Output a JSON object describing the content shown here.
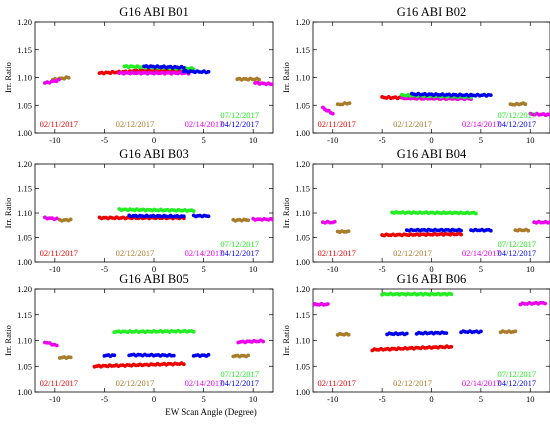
{
  "figure": {
    "xlabel": "EW Scan Angle (Degree)",
    "ylabel": "Irr. Ratio"
  },
  "colors": {
    "red": "#ee0000",
    "brown": "#a87c2a",
    "magenta": "#ee00ee",
    "green": "#22ee22",
    "blue": "#0000ee"
  },
  "chart_data": [
    {
      "type": "scatter",
      "title": "G16 ABI B01",
      "xlim": [
        -12,
        12
      ],
      "ylim": [
        1.0,
        1.2
      ],
      "xticks": [
        -10,
        -5,
        0,
        5,
        10
      ],
      "yticks": [
        "1.00",
        "1.05",
        "1.10",
        "1.15",
        "1.20"
      ],
      "series": [
        {
          "name": "02/11/2017",
          "color": "red",
          "segments": [
            {
              "x0": -5.5,
              "x1": -2,
              "y0": 1.108,
              "y1": 1.111
            },
            {
              "x0": -2,
              "x1": 3,
              "y0": 1.112,
              "y1": 1.113
            }
          ]
        },
        {
          "name": "02/12/2017",
          "color": "brown",
          "segments": [
            {
              "x0": -10.2,
              "x1": -8.6,
              "y0": 1.096,
              "y1": 1.1
            },
            {
              "x0": 8.4,
              "x1": 10.6,
              "y0": 1.097,
              "y1": 1.097
            }
          ]
        },
        {
          "name": "02/14/2017",
          "color": "magenta",
          "segments": [
            {
              "x0": -11,
              "x1": -9.6,
              "y0": 1.09,
              "y1": 1.095
            },
            {
              "x0": -3.5,
              "x1": 3.5,
              "y0": 1.108,
              "y1": 1.108
            },
            {
              "x0": 10.2,
              "x1": 12,
              "y0": 1.09,
              "y1": 1.088
            }
          ]
        },
        {
          "name": "07/12/2017",
          "color": "green",
          "segments": [
            {
              "x0": -3,
              "x1": 4,
              "y0": 1.12,
              "y1": 1.116
            }
          ]
        },
        {
          "name": "04/12/2017",
          "color": "blue",
          "segments": [
            {
              "x0": -1,
              "x1": 3,
              "y0": 1.12,
              "y1": 1.118
            },
            {
              "x0": 3,
              "x1": 5.5,
              "y0": 1.111,
              "y1": 1.11
            }
          ]
        }
      ]
    },
    {
      "type": "scatter",
      "title": "G16 ABI B02",
      "xlim": [
        -12,
        12
      ],
      "ylim": [
        1.0,
        1.2
      ],
      "xticks": [
        -10,
        -5,
        0,
        5,
        10
      ],
      "yticks": [
        "1.00",
        "1.05",
        "1.10",
        "1.15",
        "1.20"
      ],
      "series": [
        {
          "name": "02/11/2017",
          "color": "red",
          "segments": [
            {
              "x0": -5,
              "x1": 3,
              "y0": 1.064,
              "y1": 1.062
            }
          ]
        },
        {
          "name": "02/12/2017",
          "color": "brown",
          "segments": [
            {
              "x0": -9.5,
              "x1": -8.3,
              "y0": 1.051,
              "y1": 1.054
            },
            {
              "x0": 8,
              "x1": 9.5,
              "y0": 1.051,
              "y1": 1.053
            }
          ]
        },
        {
          "name": "02/14/2017",
          "color": "magenta",
          "segments": [
            {
              "x0": -11,
              "x1": -10,
              "y0": 1.045,
              "y1": 1.035
            },
            {
              "x0": -3,
              "x1": 4,
              "y0": 1.063,
              "y1": 1.062
            },
            {
              "x0": 10,
              "x1": 12,
              "y0": 1.034,
              "y1": 1.033
            }
          ]
        },
        {
          "name": "07/12/2017",
          "color": "green",
          "segments": [
            {
              "x0": -3,
              "x1": 4,
              "y0": 1.068,
              "y1": 1.065
            }
          ]
        },
        {
          "name": "04/12/2017",
          "color": "blue",
          "segments": [
            {
              "x0": -2,
              "x1": 4,
              "y0": 1.07,
              "y1": 1.068
            },
            {
              "x0": 4,
              "x1": 6,
              "y0": 1.068,
              "y1": 1.068
            }
          ]
        }
      ]
    },
    {
      "type": "scatter",
      "title": "G16 ABI B03",
      "xlim": [
        -12,
        12
      ],
      "ylim": [
        1.0,
        1.2
      ],
      "xticks": [
        -10,
        -5,
        0,
        5,
        10
      ],
      "yticks": [
        "1.00",
        "1.05",
        "1.10",
        "1.15",
        "1.20"
      ],
      "series": [
        {
          "name": "02/11/2017",
          "color": "red",
          "segments": [
            {
              "x0": -5.5,
              "x1": 3,
              "y0": 1.09,
              "y1": 1.09
            }
          ]
        },
        {
          "name": "02/12/2017",
          "color": "brown",
          "segments": [
            {
              "x0": -9.5,
              "x1": -8.4,
              "y0": 1.085,
              "y1": 1.086
            },
            {
              "x0": 8,
              "x1": 9.5,
              "y0": 1.085,
              "y1": 1.086
            }
          ]
        },
        {
          "name": "02/14/2017",
          "color": "magenta",
          "segments": [
            {
              "x0": -11,
              "x1": -9.8,
              "y0": 1.09,
              "y1": 1.088
            },
            {
              "x0": 10,
              "x1": 12,
              "y0": 1.087,
              "y1": 1.087
            }
          ]
        },
        {
          "name": "07/12/2017",
          "color": "green",
          "segments": [
            {
              "x0": -3.5,
              "x1": 4,
              "y0": 1.107,
              "y1": 1.105
            }
          ]
        },
        {
          "name": "04/12/2017",
          "color": "blue",
          "segments": [
            {
              "x0": -2.5,
              "x1": 3,
              "y0": 1.094,
              "y1": 1.093
            },
            {
              "x0": 4,
              "x1": 5.5,
              "y0": 1.094,
              "y1": 1.094
            }
          ]
        }
      ]
    },
    {
      "type": "scatter",
      "title": "G16 ABI B04",
      "xlim": [
        -12,
        12
      ],
      "ylim": [
        1.0,
        1.2
      ],
      "xticks": [
        -10,
        -5,
        0,
        5,
        10
      ],
      "yticks": [
        "1.00",
        "1.05",
        "1.10",
        "1.15",
        "1.20"
      ],
      "series": [
        {
          "name": "02/11/2017",
          "color": "red",
          "segments": [
            {
              "x0": -5,
              "x1": 3,
              "y0": 1.055,
              "y1": 1.057
            }
          ]
        },
        {
          "name": "02/12/2017",
          "color": "brown",
          "segments": [
            {
              "x0": -9.5,
              "x1": -8.4,
              "y0": 1.062,
              "y1": 1.062
            },
            {
              "x0": 8.5,
              "x1": 9.8,
              "y0": 1.065,
              "y1": 1.065
            }
          ]
        },
        {
          "name": "02/14/2017",
          "color": "magenta",
          "segments": [
            {
              "x0": -11,
              "x1": -9.8,
              "y0": 1.081,
              "y1": 1.081
            },
            {
              "x0": 10.4,
              "x1": 12,
              "y0": 1.081,
              "y1": 1.081
            }
          ]
        },
        {
          "name": "07/12/2017",
          "color": "green",
          "segments": [
            {
              "x0": -4,
              "x1": 4.5,
              "y0": 1.101,
              "y1": 1.1
            }
          ]
        },
        {
          "name": "04/12/2017",
          "color": "blue",
          "segments": [
            {
              "x0": -2.5,
              "x1": 3,
              "y0": 1.065,
              "y1": 1.065
            },
            {
              "x0": 4,
              "x1": 6,
              "y0": 1.065,
              "y1": 1.065
            }
          ]
        }
      ]
    },
    {
      "type": "scatter",
      "title": "G16 ABI B05",
      "xlim": [
        -12,
        12
      ],
      "ylim": [
        1.0,
        1.2
      ],
      "xticks": [
        -10,
        -5,
        0,
        5,
        10
      ],
      "yticks": [
        "1.00",
        "1.05",
        "1.10",
        "1.15",
        "1.20"
      ],
      "series": [
        {
          "name": "02/11/2017",
          "color": "red",
          "segments": [
            {
              "x0": -6,
              "x1": 3,
              "y0": 1.05,
              "y1": 1.055
            }
          ]
        },
        {
          "name": "02/12/2017",
          "color": "brown",
          "segments": [
            {
              "x0": -9.5,
              "x1": -8.4,
              "y0": 1.067,
              "y1": 1.067
            },
            {
              "x0": 8,
              "x1": 9.5,
              "y0": 1.07,
              "y1": 1.07
            }
          ]
        },
        {
          "name": "02/14/2017",
          "color": "magenta",
          "segments": [
            {
              "x0": -11,
              "x1": -9.8,
              "y0": 1.097,
              "y1": 1.09
            },
            {
              "x0": 8.5,
              "x1": 11,
              "y0": 1.097,
              "y1": 1.099
            }
          ]
        },
        {
          "name": "07/12/2017",
          "color": "green",
          "segments": [
            {
              "x0": -4,
              "x1": 4,
              "y0": 1.117,
              "y1": 1.118
            }
          ]
        },
        {
          "name": "04/12/2017",
          "color": "blue",
          "segments": [
            {
              "x0": -5,
              "x1": -4,
              "y0": 1.071,
              "y1": 1.071
            },
            {
              "x0": -2.5,
              "x1": 2,
              "y0": 1.072,
              "y1": 1.071
            },
            {
              "x0": 4,
              "x1": 5.5,
              "y0": 1.071,
              "y1": 1.071
            }
          ]
        }
      ]
    },
    {
      "type": "scatter",
      "title": "G16 ABI B06",
      "xlim": [
        -12,
        12
      ],
      "ylim": [
        1.0,
        1.2
      ],
      "xticks": [
        -10,
        -5,
        0,
        5,
        10
      ],
      "yticks": [
        "1.00",
        "1.05",
        "1.10",
        "1.15",
        "1.20"
      ],
      "series": [
        {
          "name": "02/11/2017",
          "color": "red",
          "segments": [
            {
              "x0": -6,
              "x1": 2,
              "y0": 1.082,
              "y1": 1.088
            }
          ]
        },
        {
          "name": "02/12/2017",
          "color": "brown",
          "segments": [
            {
              "x0": -9.5,
              "x1": -8.4,
              "y0": 1.112,
              "y1": 1.112
            },
            {
              "x0": 7,
              "x1": 8.5,
              "y0": 1.117,
              "y1": 1.117
            }
          ]
        },
        {
          "name": "02/14/2017",
          "color": "magenta",
          "segments": [
            {
              "x0": -12,
              "x1": -10.5,
              "y0": 1.17,
              "y1": 1.17
            },
            {
              "x0": 9,
              "x1": 11.5,
              "y0": 1.171,
              "y1": 1.173
            }
          ]
        },
        {
          "name": "07/12/2017",
          "color": "green",
          "segments": [
            {
              "x0": -5,
              "x1": 2,
              "y0": 1.19,
              "y1": 1.19
            }
          ]
        },
        {
          "name": "04/12/2017",
          "color": "blue",
          "segments": [
            {
              "x0": -4.5,
              "x1": -2.5,
              "y0": 1.113,
              "y1": 1.113
            },
            {
              "x0": -1.5,
              "x1": 1.5,
              "y0": 1.114,
              "y1": 1.115
            },
            {
              "x0": 3,
              "x1": 5,
              "y0": 1.117,
              "y1": 1.117
            }
          ]
        }
      ]
    }
  ]
}
